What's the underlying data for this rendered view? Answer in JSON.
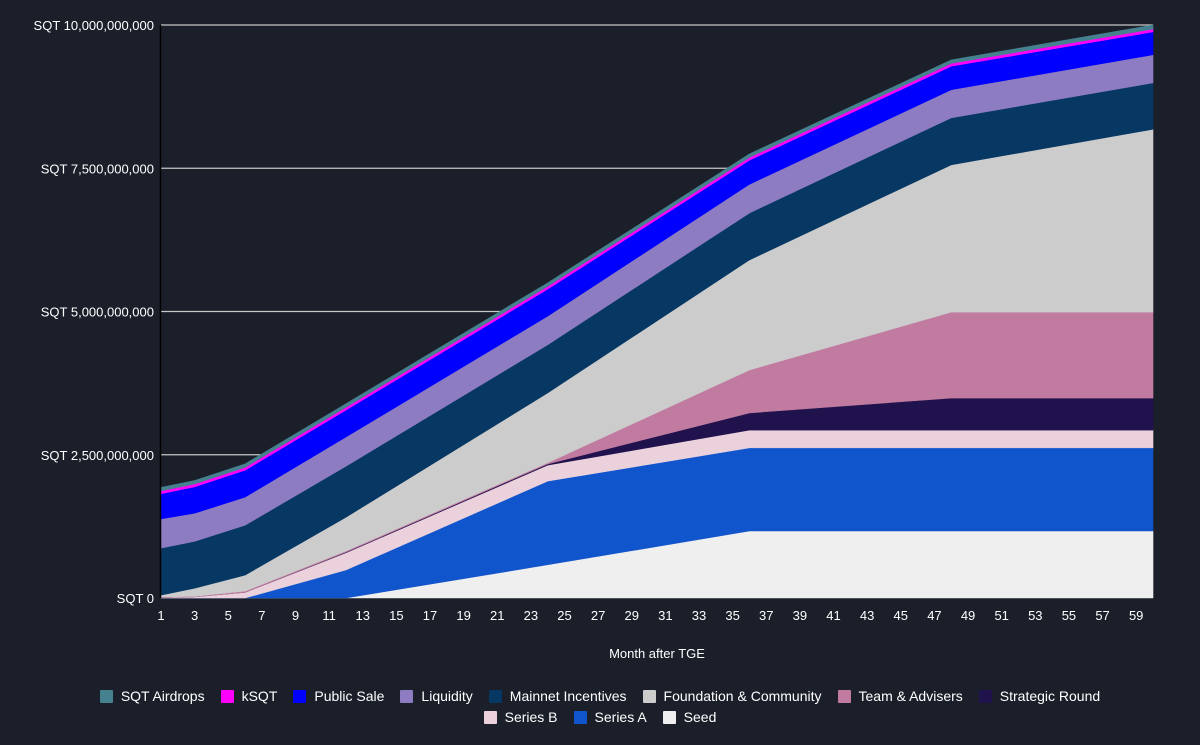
{
  "chart_data": {
    "type": "area",
    "stacked": true,
    "title": "",
    "xlabel": "Month after TGE",
    "ylabel": "",
    "xlim": [
      1,
      60
    ],
    "ylim": [
      0,
      10000000000
    ],
    "x": [
      1,
      3,
      6,
      12,
      24,
      36,
      48,
      60
    ],
    "x_ticks": [
      "1",
      "3",
      "5",
      "7",
      "9",
      "11",
      "13",
      "15",
      "17",
      "19",
      "21",
      "23",
      "25",
      "27",
      "29",
      "31",
      "33",
      "35",
      "37",
      "39",
      "41",
      "43",
      "45",
      "47",
      "49",
      "51",
      "53",
      "55",
      "57",
      "59"
    ],
    "y_ticks": [
      {
        "value": 0,
        "label": "SQT 0"
      },
      {
        "value": 2500000000,
        "label": "SQT 2,500,000,000"
      },
      {
        "value": 5000000000,
        "label": "SQT 5,000,000,000"
      },
      {
        "value": 7500000000,
        "label": "SQT 7,500,000,000"
      },
      {
        "value": 10000000000,
        "label": "SQT 10,000,000,000"
      }
    ],
    "grid": true,
    "legend_position": "bottom",
    "value_unit": "billion SQT",
    "series": [
      {
        "name": "Seed",
        "color": "#efefef",
        "values": [
          0,
          0,
          0,
          0,
          0.58,
          1.17,
          1.17,
          1.17
        ]
      },
      {
        "name": "Series A",
        "color": "#1155cc",
        "values": [
          0,
          0,
          0,
          0.49,
          1.46,
          1.45,
          1.45,
          1.45
        ]
      },
      {
        "name": "Series B",
        "color": "#ead1dc",
        "values": [
          0.01,
          0.02,
          0.1,
          0.3,
          0.28,
          0.31,
          0.31,
          0.31
        ]
      },
      {
        "name": "Strategic Round",
        "color": "#20124d",
        "values": [
          0,
          0,
          0,
          0.01,
          0.02,
          0.3,
          0.56,
          0.56
        ]
      },
      {
        "name": "Team & Advisers",
        "color": "#c27ba0",
        "values": [
          0.01,
          0.01,
          0.02,
          0.02,
          0.02,
          0.75,
          1.5,
          1.5
        ]
      },
      {
        "name": "Foundation & Community",
        "color": "#cccccc",
        "values": [
          0.03,
          0.14,
          0.28,
          0.59,
          1.22,
          1.92,
          2.57,
          3.19
        ]
      },
      {
        "name": "Mainnet Incentives",
        "color": "#073763",
        "values": [
          0.82,
          0.82,
          0.87,
          0.89,
          0.84,
          0.82,
          0.82,
          0.81
        ]
      },
      {
        "name": "Liquidity",
        "color": "#8e7cc3",
        "values": [
          0.51,
          0.49,
          0.49,
          0.51,
          0.5,
          0.5,
          0.49,
          0.49
        ]
      },
      {
        "name": "Public Sale",
        "color": "#0000ff",
        "values": [
          0.44,
          0.46,
          0.47,
          0.47,
          0.47,
          0.42,
          0.41,
          0.4
        ]
      },
      {
        "name": "kSQT",
        "color": "#ff00ff",
        "values": [
          0.05,
          0.05,
          0.05,
          0.05,
          0.05,
          0.05,
          0.05,
          0.05
        ]
      },
      {
        "name": "SQT Airdrops",
        "color": "#45818e",
        "values": [
          0.06,
          0.06,
          0.06,
          0.06,
          0.06,
          0.06,
          0.06,
          0.07
        ]
      }
    ],
    "legend_order": [
      "SQT Airdrops",
      "kSQT",
      "Public Sale",
      "Liquidity",
      "Mainnet Incentives",
      "Foundation & Community",
      "Team & Advisers",
      "Strategic Round",
      "Series B",
      "Series A",
      "Seed"
    ]
  }
}
